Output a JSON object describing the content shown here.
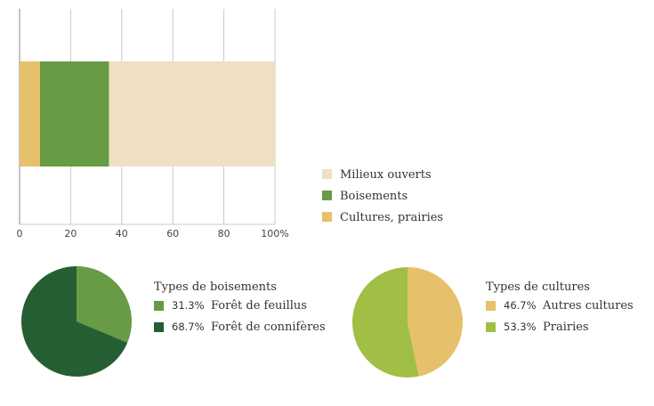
{
  "chart_data": [
    {
      "type": "bar",
      "orientation": "horizontal",
      "stacked": true,
      "categories": [
        ""
      ],
      "series": [
        {
          "name": "Cultures, prairies",
          "values": [
            8
          ],
          "color": "#e6c06a"
        },
        {
          "name": "Boisements",
          "values": [
            27
          ],
          "color": "#679b45"
        },
        {
          "name": "Milieux ouverts",
          "values": [
            65
          ],
          "color": "#f0e0c1"
        }
      ],
      "xlim": [
        0,
        100
      ],
      "xticks": [
        "0",
        "20",
        "40",
        "60",
        "80",
        "100%"
      ],
      "grid": true,
      "legend_position": "right",
      "legend": [
        "Milieux ouverts",
        "Boisements",
        "Cultures, prairies"
      ]
    },
    {
      "type": "pie",
      "title": "Types de boisements",
      "slices": [
        {
          "label": "Forêt de feuillus",
          "value": 31.3,
          "value_label": "31.3%",
          "color": "#679b45"
        },
        {
          "label": "Forêt de connifères",
          "value": 68.7,
          "value_label": "68.7%",
          "color": "#265e34"
        }
      ]
    },
    {
      "type": "pie",
      "title": "Types de cultures",
      "slices": [
        {
          "label": "Autres cultures",
          "value": 46.7,
          "value_label": "46.7%",
          "color": "#e6c06a"
        },
        {
          "label": "Prairies",
          "value": 53.3,
          "value_label": "53.3%",
          "color": "#a1bf45"
        }
      ]
    }
  ]
}
